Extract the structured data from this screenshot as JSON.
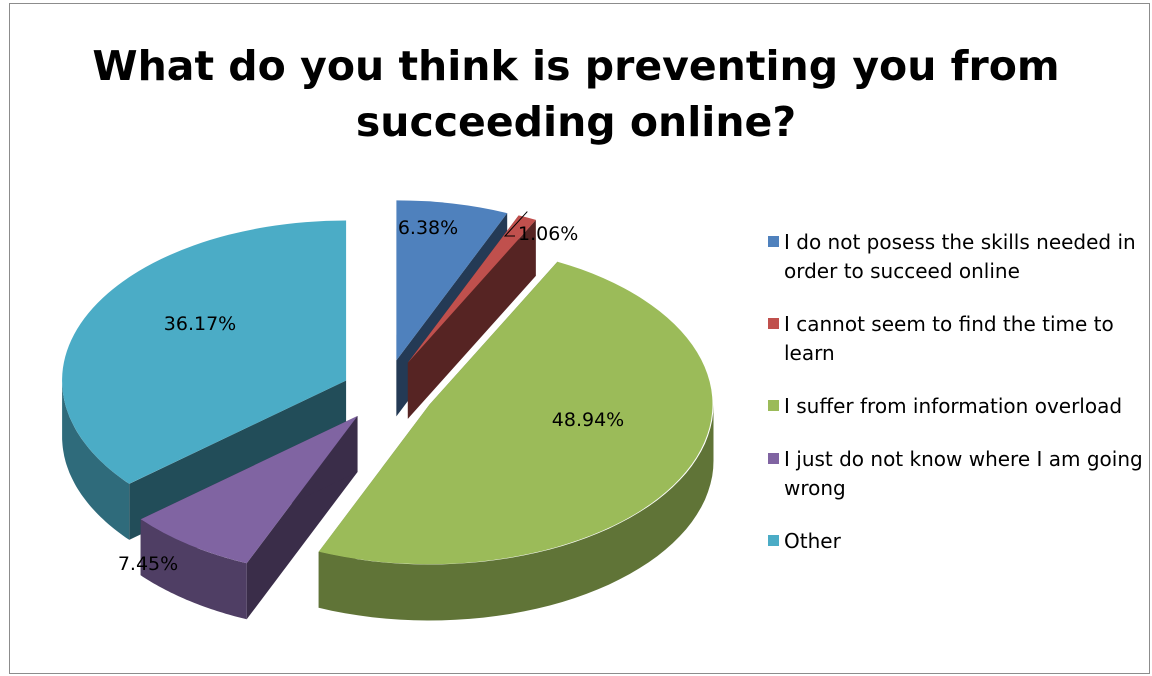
{
  "chart_data": {
    "type": "pie",
    "variant": "3d-exploded",
    "title": "What do you think is preventing you from\nsucceeding online?",
    "categories": [
      "I do not posess the skills needed in order to succeed online",
      "I cannot seem to find the time to learn",
      "I suffer from information overload",
      "I just do not know where I am going wrong",
      "Other"
    ],
    "values": [
      6.38,
      1.06,
      48.94,
      7.45,
      36.17
    ],
    "labels": [
      "6.38%",
      "1.06%",
      "48.94%",
      "7.45%",
      "36.17%"
    ],
    "colors": [
      "#4f81bd",
      "#c0504d",
      "#9bbb59",
      "#8064a2",
      "#4bacc6"
    ],
    "legend_position": "right"
  }
}
